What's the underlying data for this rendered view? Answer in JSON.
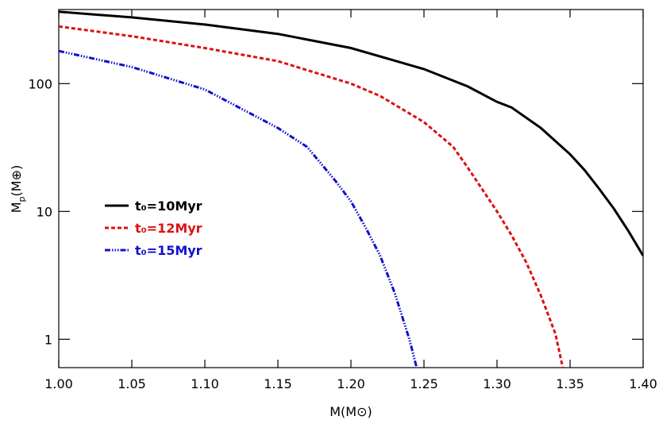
{
  "chart_data": {
    "type": "line",
    "log_y": true,
    "x_label": "M(M⊙)",
    "y_label": [
      "M",
      "p",
      "(M⊕)"
    ],
    "xlim": [
      1.0,
      1.4
    ],
    "xticks": [
      {
        "value": 1.0,
        "label": "1.00"
      },
      {
        "value": 1.05,
        "label": "1.05"
      },
      {
        "value": 1.1,
        "label": "1.10"
      },
      {
        "value": 1.15,
        "label": "1.15"
      },
      {
        "value": 1.2,
        "label": "1.20"
      },
      {
        "value": 1.25,
        "label": "1.25"
      },
      {
        "value": 1.3,
        "label": "1.30"
      },
      {
        "value": 1.35,
        "label": "1.35"
      },
      {
        "value": 1.4,
        "label": "1.40"
      }
    ],
    "ylim": [
      0.6,
      380
    ],
    "yticks": [
      1,
      10,
      100
    ],
    "legend": "middle-left",
    "series": [
      {
        "name": "t₀=10Myr",
        "color": "#000000",
        "dash": "none",
        "x": [
          1.0,
          1.05,
          1.1,
          1.15,
          1.2,
          1.25,
          1.28,
          1.3,
          1.31,
          1.33,
          1.35,
          1.36,
          1.37,
          1.38,
          1.39,
          1.4
        ],
        "values": [
          365,
          330,
          290,
          245,
          190,
          130,
          95,
          72,
          65,
          45,
          28,
          21,
          15,
          10.5,
          7,
          4.5
        ]
      },
      {
        "name": "t₀=12Myr",
        "color": "#dd1111",
        "dash": "5,3",
        "x": [
          1.0,
          1.05,
          1.1,
          1.15,
          1.2,
          1.22,
          1.25,
          1.27,
          1.28,
          1.3,
          1.31,
          1.32,
          1.33,
          1.34,
          1.345
        ],
        "values": [
          280,
          235,
          190,
          150,
          100,
          80,
          50,
          32,
          22,
          10,
          6.5,
          4,
          2.2,
          1.1,
          0.6
        ]
      },
      {
        "name": "t₀=15Myr",
        "color": "#1111cc",
        "dash": "7,2,1.5,2,1.5,2,1.5,2",
        "x": [
          1.0,
          1.05,
          1.1,
          1.15,
          1.17,
          1.19,
          1.2,
          1.21,
          1.22,
          1.23,
          1.24,
          1.245
        ],
        "values": [
          180,
          135,
          90,
          45,
          32,
          17,
          12,
          7.5,
          4.5,
          2.3,
          1.0,
          0.6
        ]
      }
    ]
  }
}
